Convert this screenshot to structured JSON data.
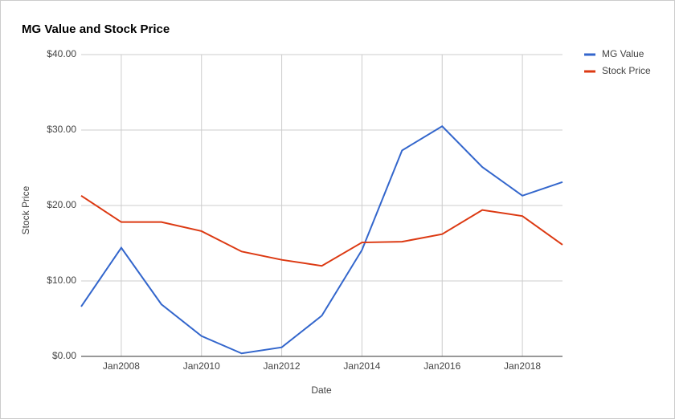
{
  "chart_data": {
    "type": "line",
    "title": "MG Value and Stock Price",
    "x_label": "Date",
    "y_label": "Stock Price",
    "categories": [
      null,
      "Jan2008",
      null,
      "Jan2010",
      null,
      "Jan2012",
      null,
      "Jan2014",
      null,
      "Jan2016",
      null,
      "Jan2018",
      null
    ],
    "series": [
      {
        "name": "MG Value",
        "color": "#3366cc",
        "values": [
          6.6,
          14.4,
          6.9,
          2.7,
          0.4,
          1.2,
          5.4,
          14.1,
          27.3,
          30.5,
          25.1,
          21.3,
          23.1
        ]
      },
      {
        "name": "Stock Price",
        "color": "#dc3912",
        "values": [
          21.3,
          17.8,
          17.8,
          16.6,
          13.9,
          12.8,
          12.0,
          15.1,
          15.2,
          16.2,
          19.4,
          18.6,
          14.8
        ]
      }
    ],
    "ylim": [
      0,
      40
    ],
    "yticks": [
      {
        "value": 0,
        "label": "$0.00"
      },
      {
        "value": 10,
        "label": "$10.00"
      },
      {
        "value": 20,
        "label": "$20.00"
      },
      {
        "value": 30,
        "label": "$30.00"
      },
      {
        "value": 40,
        "label": "$40.00"
      }
    ],
    "grid": true,
    "legend": "right"
  }
}
